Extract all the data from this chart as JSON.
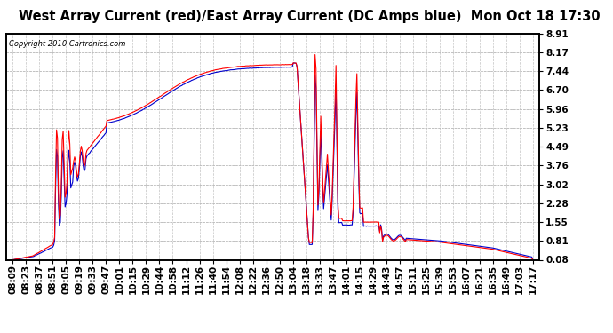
{
  "title": "West Array Current (red)/East Array Current (DC Amps blue)  Mon Oct 18 17:30",
  "copyright": "Copyright 2010 Cartronics.com",
  "ylim": [
    0.08,
    8.91
  ],
  "yticks": [
    0.08,
    0.81,
    1.55,
    2.28,
    3.02,
    3.76,
    4.49,
    5.23,
    5.96,
    6.7,
    7.44,
    8.17,
    8.91
  ],
  "x_labels": [
    "08:09",
    "08:23",
    "08:37",
    "08:51",
    "09:05",
    "09:19",
    "09:33",
    "09:47",
    "10:01",
    "10:15",
    "10:29",
    "10:44",
    "10:58",
    "11:12",
    "11:26",
    "11:40",
    "11:54",
    "12:08",
    "12:22",
    "12:36",
    "12:50",
    "13:04",
    "13:18",
    "13:33",
    "13:47",
    "14:01",
    "14:15",
    "14:29",
    "14:43",
    "14:57",
    "15:11",
    "15:25",
    "15:39",
    "15:53",
    "16:07",
    "16:21",
    "16:35",
    "16:49",
    "17:03",
    "17:17"
  ],
  "background_color": "#ffffff",
  "plot_bg_color": "#ffffff",
  "grid_color": "#bbbbbb",
  "red_color": "#ff0000",
  "blue_color": "#0000cc",
  "title_fontsize": 10.5,
  "tick_fontsize": 7.5
}
